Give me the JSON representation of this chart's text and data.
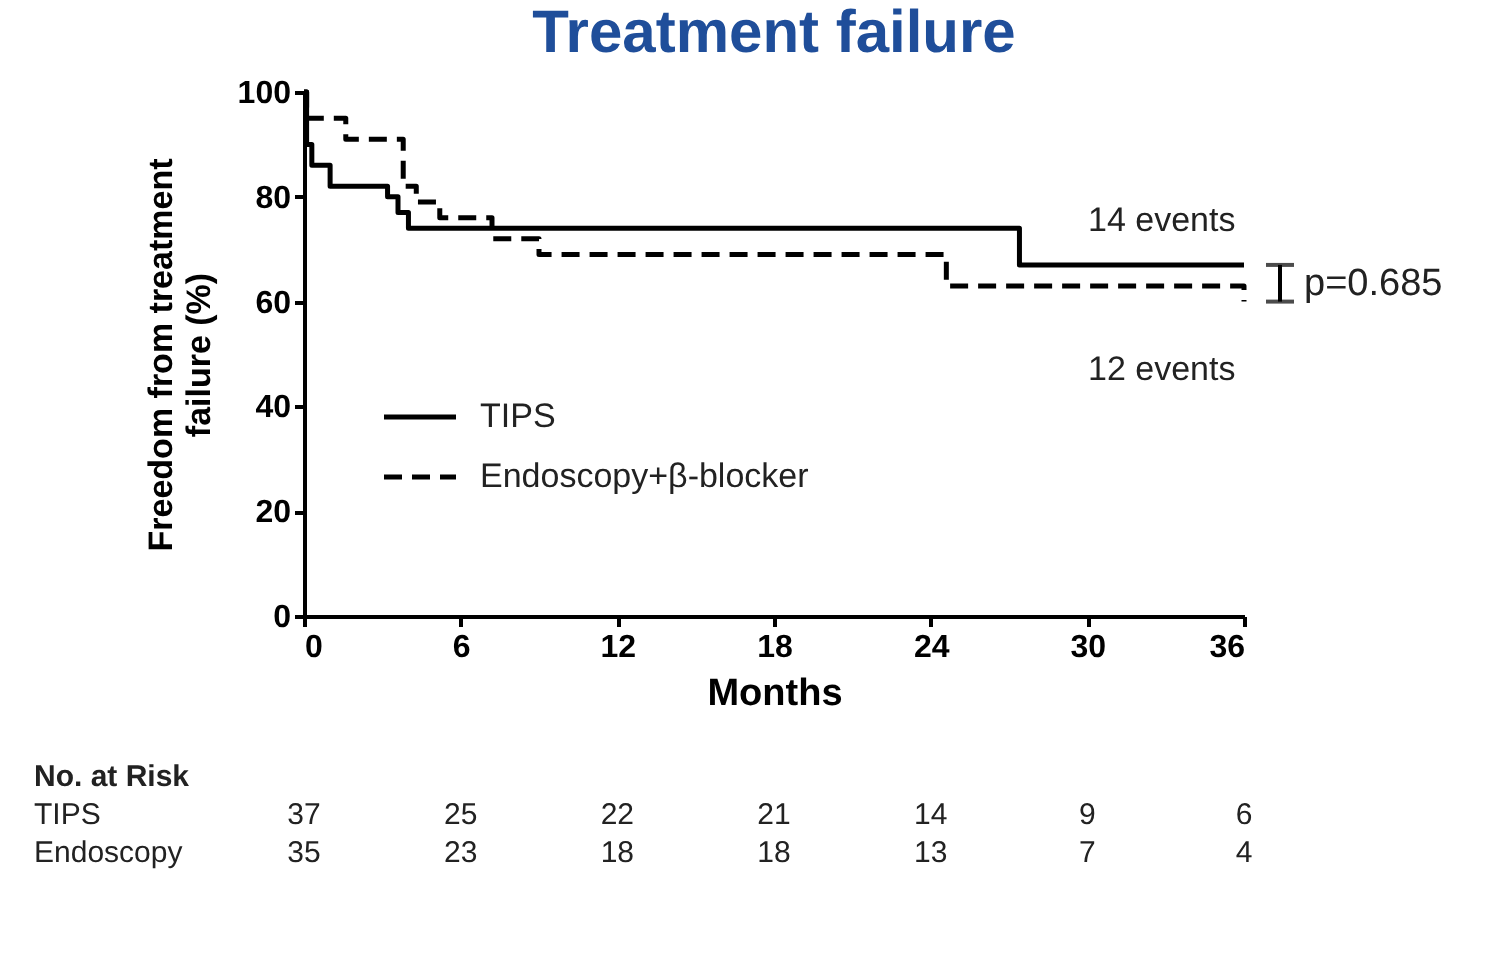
{
  "chart_data": {
    "type": "step",
    "title": "Treatment failure",
    "xlabel": "Months",
    "ylabel": "Freedom from treatment failure  (%)",
    "series": [
      {
        "name": "TIPS",
        "color": "#000000",
        "line_style": "solid",
        "x": [
          0,
          0.1,
          0.3,
          1.0,
          3.2,
          3.6,
          4.0,
          27.4,
          36
        ],
        "values": [
          100,
          90,
          86,
          82,
          80,
          77,
          74,
          67,
          67
        ]
      },
      {
        "name": "Endoscopy+β-blocker",
        "color": "#000000",
        "line_style": "dashed",
        "x": [
          0,
          0.1,
          1.6,
          3.8,
          4.3,
          5.2,
          7.2,
          9.0,
          24.6,
          35.9,
          36
        ],
        "values": [
          100,
          95,
          91,
          82,
          79,
          76,
          72,
          69,
          63,
          63,
          60
        ]
      }
    ],
    "xlim": [
      0,
      36
    ],
    "xticks": [
      0,
      6,
      12,
      18,
      24,
      30,
      36
    ],
    "ylim": [
      0,
      100
    ],
    "yticks": [
      0,
      20,
      40,
      60,
      80,
      100
    ],
    "grid": false,
    "legend": "left",
    "annotations": [
      "14 events",
      "12 events",
      "p=0.685",
      "No. at Risk",
      "TIPS",
      "37",
      "25",
      "22",
      "21",
      "14",
      "9",
      "6",
      "Endoscopy",
      "35",
      "23",
      "18",
      "18",
      "13",
      "7",
      "4"
    ]
  }
}
